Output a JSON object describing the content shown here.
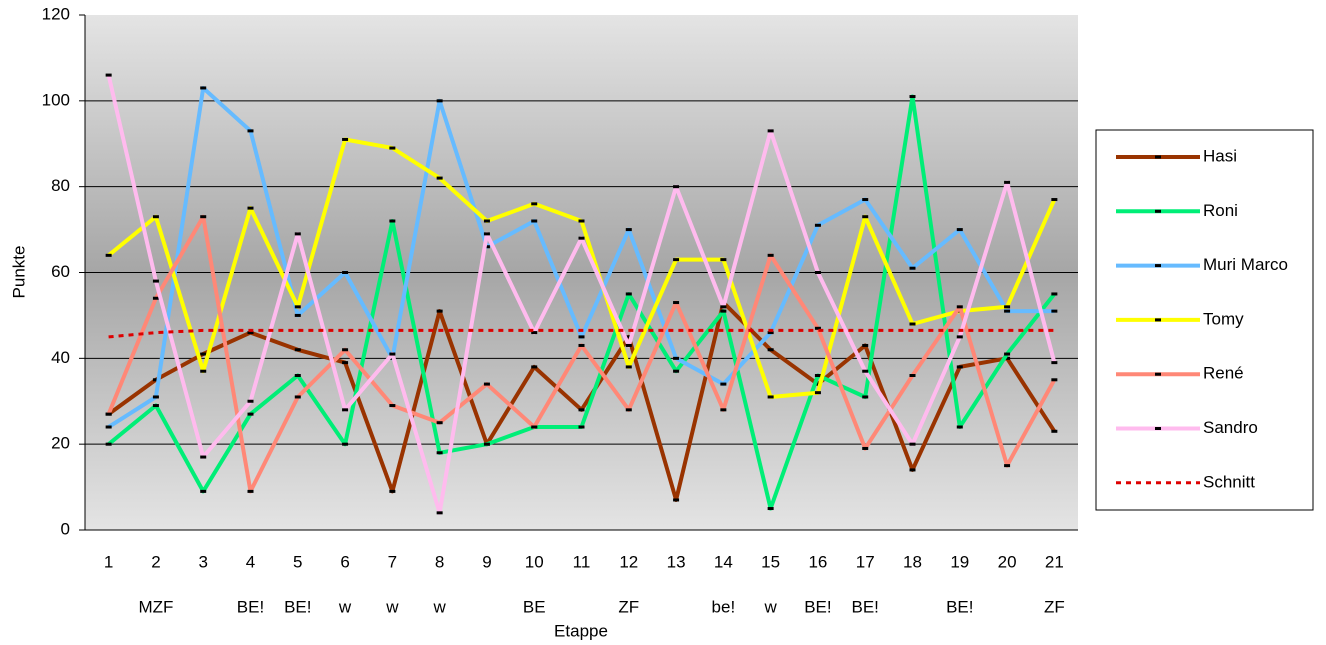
{
  "chart_data": {
    "type": "line",
    "xlabel": "Etappe",
    "ylabel": "Punkte",
    "categories": [
      "1",
      "2",
      "3",
      "4",
      "5",
      "6",
      "7",
      "8",
      "9",
      "10",
      "11",
      "12",
      "13",
      "14",
      "15",
      "16",
      "17",
      "18",
      "19",
      "20",
      "21"
    ],
    "sublabels": [
      null,
      "MZF",
      null,
      "BE!",
      "BE!",
      "w",
      "w",
      "w",
      null,
      "BE",
      null,
      "ZF",
      null,
      "be!",
      "w",
      "BE!",
      "BE!",
      null,
      "BE!",
      null,
      "ZF"
    ],
    "ylim": [
      0,
      120
    ],
    "yticks": [
      0,
      20,
      40,
      60,
      80,
      100,
      120
    ],
    "grid": true,
    "legend": "right",
    "series": [
      {
        "name": "Hasi",
        "color": "#993300",
        "values": [
          27,
          35,
          41,
          46,
          42,
          39,
          9,
          51,
          20,
          38,
          28,
          45,
          7,
          53,
          42,
          34,
          43,
          14,
          38,
          40,
          23
        ]
      },
      {
        "name": "Roni",
        "color": "#00ee77",
        "values": [
          20,
          29,
          9,
          27,
          36,
          20,
          72,
          18,
          20,
          24,
          24,
          55,
          37,
          51,
          5,
          36,
          31,
          101,
          24,
          41,
          55
        ]
      },
      {
        "name": "Muri Marco",
        "color": "#66bbff",
        "values": [
          24,
          31,
          103,
          93,
          50,
          60,
          40,
          100,
          66,
          72,
          45,
          70,
          40,
          34,
          46,
          71,
          77,
          61,
          70,
          51,
          51
        ]
      },
      {
        "name": "Tomy",
        "color": "#ffff00",
        "values": [
          64,
          73,
          37,
          75,
          52,
          91,
          89,
          82,
          72,
          76,
          72,
          38,
          63,
          63,
          31,
          32,
          73,
          48,
          51,
          52,
          77
        ]
      },
      {
        "name": "René",
        "color": "#ff8877",
        "values": [
          27,
          54,
          73,
          9,
          31,
          42,
          29,
          25,
          34,
          24,
          43,
          28,
          53,
          28,
          64,
          47,
          19,
          36,
          52,
          15,
          35
        ]
      },
      {
        "name": "Sandro",
        "color": "#ffbbee",
        "values": [
          106,
          58,
          17,
          30,
          69,
          28,
          41,
          4,
          69,
          46,
          68,
          43,
          80,
          52,
          93,
          60,
          37,
          20,
          45,
          81,
          39
        ]
      },
      {
        "name": "Schnitt",
        "color": "#dd0000",
        "dashed": true,
        "values": [
          45,
          46,
          46.5,
          46.5,
          46.5,
          46.5,
          46.5,
          46.5,
          46.5,
          46.5,
          46.5,
          46.5,
          46.5,
          46.5,
          46.5,
          46.5,
          46.5,
          46.5,
          46.5,
          46.5,
          46.5
        ]
      }
    ]
  }
}
